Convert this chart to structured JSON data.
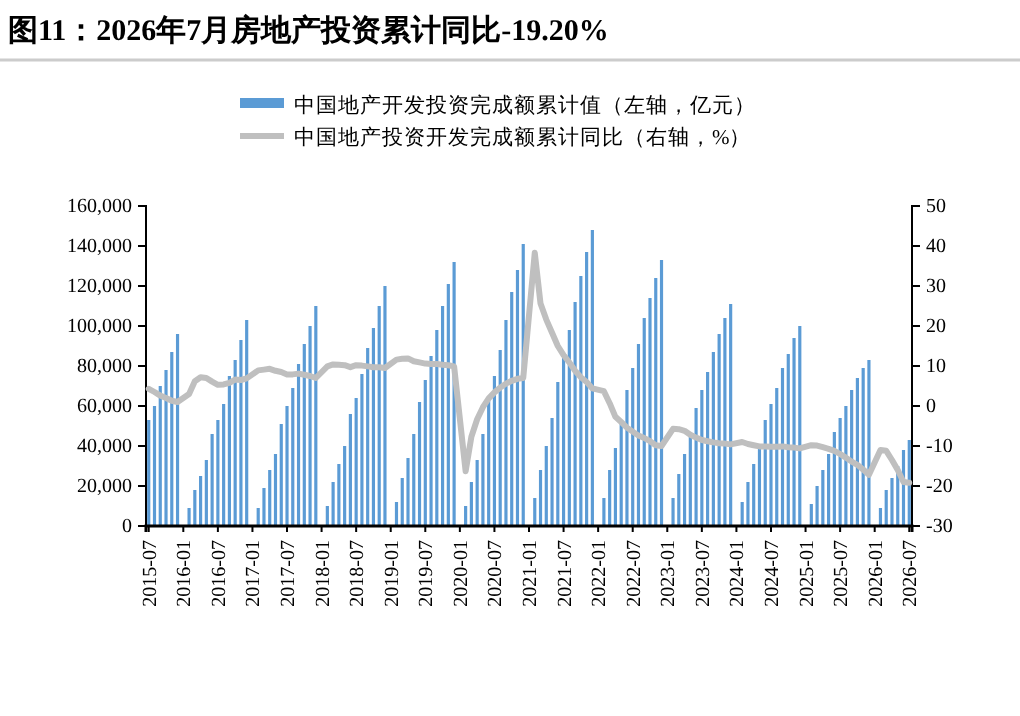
{
  "chart_data": {
    "type": "bar",
    "title": "图11：2026年7月房地产投资累计同比-19.20%",
    "categories": [
      "2015-07",
      null,
      null,
      null,
      null,
      null,
      "2016-01",
      null,
      null,
      null,
      null,
      null,
      "2016-07",
      null,
      null,
      null,
      null,
      null,
      "2017-01",
      null,
      null,
      null,
      null,
      null,
      "2017-07",
      null,
      null,
      null,
      null,
      null,
      "2018-01",
      null,
      null,
      null,
      null,
      null,
      "2018-07",
      null,
      null,
      null,
      null,
      null,
      "2019-01",
      null,
      null,
      null,
      null,
      null,
      "2019-07",
      null,
      null,
      null,
      null,
      null,
      "2020-01",
      null,
      null,
      null,
      null,
      null,
      "2020-07",
      null,
      null,
      null,
      null,
      null,
      "2021-01",
      null,
      null,
      null,
      null,
      null,
      "2021-07",
      null,
      null,
      null,
      null,
      null,
      "2022-01",
      null,
      null,
      null,
      null,
      null,
      "2022-07",
      null,
      null,
      null,
      null,
      null,
      "2023-01",
      null,
      null,
      null,
      null,
      null,
      "2023-07",
      null,
      null,
      null,
      null,
      null,
      "2024-01",
      null,
      null,
      null,
      null,
      null,
      "2024-07",
      null,
      null,
      null,
      null,
      null,
      "2025-01",
      null,
      null,
      null,
      null,
      null,
      "2025-07",
      null,
      null,
      null,
      null,
      null,
      "2026-01",
      null,
      null,
      null,
      null,
      null,
      "2026-07"
    ],
    "series": [
      {
        "name": "中国地产开发投资完成额累计值（左轴，亿元）",
        "color": "#5b9bd5",
        "values": [
          53000,
          60000,
          70000,
          78000,
          87000,
          96000,
          null,
          9000,
          18000,
          25000,
          33000,
          46000,
          53000,
          61000,
          75000,
          83000,
          93000,
          103000,
          null,
          9000,
          19000,
          28000,
          36000,
          51000,
          60000,
          69000,
          81000,
          91000,
          100000,
          110000,
          null,
          10000,
          22000,
          31000,
          40000,
          56000,
          64000,
          76000,
          89000,
          99000,
          110000,
          120000,
          null,
          12000,
          24000,
          34000,
          46000,
          62000,
          73000,
          85000,
          98000,
          110000,
          121000,
          132000,
          null,
          10000,
          22000,
          33000,
          46000,
          63000,
          75000,
          88000,
          103000,
          117000,
          128000,
          141000,
          null,
          14000,
          28000,
          40000,
          54000,
          72000,
          85000,
          98000,
          112000,
          125000,
          137000,
          148000,
          null,
          14000,
          28000,
          39000,
          52000,
          68000,
          79000,
          91000,
          104000,
          114000,
          124000,
          133000,
          null,
          14000,
          26000,
          36000,
          46000,
          59000,
          68000,
          77000,
          87000,
          96000,
          104000,
          111000,
          null,
          12000,
          22000,
          31000,
          41000,
          53000,
          61000,
          69000,
          79000,
          86000,
          94000,
          100000,
          null,
          11000,
          20000,
          28000,
          36000,
          47000,
          54000,
          60000,
          68000,
          74000,
          79000,
          83000,
          null,
          9000,
          18000,
          24000,
          30000,
          38000,
          43000
        ]
      },
      {
        "name": "中国地产投资开发完成额累计同比（右轴，%）",
        "type": "line",
        "axis": "y2",
        "color": "#bfbfbf",
        "values": [
          4.3,
          3.5,
          2.6,
          2.0,
          1.3,
          1.0,
          null,
          3.0,
          6.2,
          7.2,
          7.0,
          6.1,
          5.3,
          5.4,
          5.8,
          6.6,
          6.5,
          6.9,
          null,
          8.9,
          9.1,
          9.3,
          8.8,
          8.5,
          7.9,
          7.9,
          8.1,
          7.8,
          7.5,
          7.0,
          null,
          9.9,
          10.4,
          10.3,
          10.2,
          9.7,
          10.2,
          10.1,
          9.9,
          9.7,
          9.7,
          9.5,
          null,
          11.6,
          11.8,
          11.9,
          11.2,
          10.9,
          10.6,
          10.5,
          10.5,
          10.3,
          10.2,
          9.9,
          null,
          -16.3,
          -7.7,
          -3.3,
          -0.3,
          1.9,
          3.4,
          4.6,
          5.6,
          6.3,
          6.8,
          7.0,
          null,
          38.3,
          25.6,
          21.6,
          18.3,
          15.0,
          12.7,
          10.9,
          8.8,
          7.2,
          6.0,
          4.4,
          null,
          3.7,
          0.7,
          -2.7,
          -4.0,
          -5.4,
          -6.4,
          -7.4,
          -8.0,
          -8.8,
          -9.8,
          -10.0,
          null,
          -5.7,
          -5.8,
          -6.2,
          -7.2,
          -7.9,
          -8.5,
          -8.8,
          -9.1,
          -9.3,
          -9.4,
          -9.6,
          null,
          -9.0,
          -9.5,
          -9.8,
          -10.1,
          -10.1,
          -10.2,
          -10.2,
          -10.1,
          -10.3,
          -10.4,
          -10.6,
          null,
          -9.8,
          -9.9,
          -10.3,
          -10.7,
          -11.2,
          -12.0,
          -12.9,
          -13.9,
          -14.7,
          -15.9,
          -17.2,
          null,
          -11.0,
          -11.2,
          -13.5,
          -16.0,
          -19.0,
          -19.2
        ]
      }
    ],
    "ylim": [
      0,
      160000
    ],
    "yticks": [
      {
        "value": 0,
        "label": "0"
      },
      {
        "value": 20000,
        "label": "20,000"
      },
      {
        "value": 40000,
        "label": "40,000"
      },
      {
        "value": 60000,
        "label": "60,000"
      },
      {
        "value": 80000,
        "label": "80,000"
      },
      {
        "value": 100000,
        "label": "100,000"
      },
      {
        "value": 120000,
        "label": "120,000"
      },
      {
        "value": 140000,
        "label": "140,000"
      },
      {
        "value": 160000,
        "label": "160,000"
      }
    ],
    "y2lim": [
      -30,
      50
    ],
    "y2ticks": [
      -30,
      -20,
      -10,
      0,
      10,
      20,
      30,
      40,
      50
    ],
    "legend": "top",
    "grid": false
  }
}
